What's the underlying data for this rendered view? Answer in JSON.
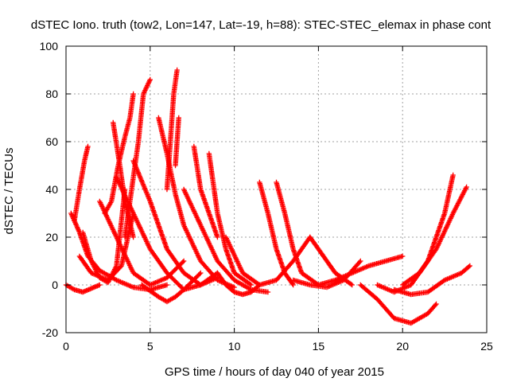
{
  "chart_data": {
    "type": "scatter",
    "title": "dSTEC Iono. truth (tow2, Lon=147, Lat=-19, h=88): STEC-STEC_elemax in phase cont",
    "xlabel": "GPS time / hours of day 040 of year 2015",
    "ylabel": "dSTEC  / TECUs",
    "xlim": [
      0,
      25
    ],
    "ylim": [
      -20,
      100
    ],
    "x_ticks": [
      "0",
      "5",
      "10",
      "15",
      "20",
      "25"
    ],
    "y_ticks": [
      "-20",
      "0",
      "20",
      "40",
      "60",
      "80",
      "100"
    ],
    "grid": true,
    "legend": "none",
    "marker": "+",
    "series_color": "#ff0000",
    "series": [
      {
        "x": [
          0.0,
          0.5,
          1.0,
          1.5,
          2.0
        ],
        "y": [
          0.0,
          -2.0,
          -3.0,
          -1.5,
          0.0
        ]
      },
      {
        "x": [
          0.3,
          0.8,
          1.3,
          2.0,
          3.0,
          4.0,
          5.0,
          6.0
        ],
        "y": [
          30,
          22,
          12,
          6,
          2,
          -1,
          -2,
          0
        ]
      },
      {
        "x": [
          0.5,
          0.8,
          1.1,
          1.3
        ],
        "y": [
          27,
          40,
          52,
          58
        ]
      },
      {
        "x": [
          0.8,
          1.5,
          2.5,
          3.3,
          4.0
        ],
        "y": [
          12,
          5,
          2,
          8,
          30
        ]
      },
      {
        "x": [
          1.0,
          1.5,
          2.0,
          2.5,
          3.0,
          3.5
        ],
        "y": [
          22,
          10,
          3,
          1,
          8,
          40
        ]
      },
      {
        "x": [
          2.0,
          3.0,
          4.0,
          5.0,
          6.0,
          7.0
        ],
        "y": [
          35,
          20,
          5,
          0,
          3,
          10
        ]
      },
      {
        "x": [
          2.3,
          2.7,
          3.1,
          3.5,
          3.8,
          4.0
        ],
        "y": [
          30,
          35,
          50,
          62,
          70,
          80
        ]
      },
      {
        "x": [
          2.8,
          3.2,
          3.5,
          4.0
        ],
        "y": [
          68,
          50,
          35,
          20
        ]
      },
      {
        "x": [
          3.0,
          4.0,
          5.0,
          6.0,
          7.0,
          8.0,
          9.0
        ],
        "y": [
          45,
          30,
          15,
          5,
          -2,
          0,
          5
        ]
      },
      {
        "x": [
          3.5,
          4.3,
          4.6,
          5.0
        ],
        "y": [
          20,
          60,
          80,
          86
        ]
      },
      {
        "x": [
          4.0,
          5.0,
          6.0,
          7.0,
          8.0,
          9.0
        ],
        "y": [
          52,
          35,
          15,
          5,
          0,
          3
        ]
      },
      {
        "x": [
          4.5,
          5.5,
          6.0,
          6.5,
          7.0,
          8.0
        ],
        "y": [
          0,
          -5,
          -7,
          -5,
          -2,
          5
        ]
      },
      {
        "x": [
          5.5,
          6.0,
          6.5,
          7.0,
          8.0,
          9.0,
          10.0
        ],
        "y": [
          70,
          55,
          38,
          25,
          10,
          2,
          -1
        ]
      },
      {
        "x": [
          6.0,
          6.2,
          6.4,
          6.6
        ],
        "y": [
          40,
          60,
          80,
          90
        ]
      },
      {
        "x": [
          6.5,
          6.7
        ],
        "y": [
          50,
          70
        ]
      },
      {
        "x": [
          7.0,
          8.0,
          9.0,
          10.0,
          11.0,
          12.0
        ],
        "y": [
          40,
          25,
          10,
          2,
          -2,
          -3
        ]
      },
      {
        "x": [
          7.6,
          8.0,
          8.5,
          9.0
        ],
        "y": [
          58,
          40,
          30,
          20
        ]
      },
      {
        "x": [
          8.5,
          9.0,
          9.5,
          10.0,
          11.0
        ],
        "y": [
          55,
          30,
          15,
          5,
          0
        ]
      },
      {
        "x": [
          9.0,
          9.5,
          10.0,
          10.5,
          11.0,
          11.5
        ],
        "y": [
          5,
          0,
          -3,
          -4,
          -3,
          0
        ]
      },
      {
        "x": [
          9.5,
          10.5,
          11.5,
          12.5,
          13.5,
          14.5
        ],
        "y": [
          20,
          5,
          0,
          2,
          10,
          20
        ]
      },
      {
        "x": [
          11.5,
          12.0,
          12.5,
          13.0,
          13.5
        ],
        "y": [
          43,
          30,
          15,
          5,
          0
        ]
      },
      {
        "x": [
          12.5,
          13.0,
          13.5,
          14.0,
          15.0
        ],
        "y": [
          43,
          30,
          15,
          5,
          0
        ]
      },
      {
        "x": [
          13.5,
          14.5,
          15.5,
          16.5,
          17.5
        ],
        "y": [
          2,
          0,
          -1,
          2,
          10
        ]
      },
      {
        "x": [
          14.5,
          15.0,
          15.5,
          16.0,
          17.0
        ],
        "y": [
          20,
          15,
          10,
          5,
          0
        ]
      },
      {
        "x": [
          15.0,
          16.0,
          17.0,
          18.0,
          19.0,
          20.0
        ],
        "y": [
          0,
          2,
          5,
          8,
          10,
          12
        ]
      },
      {
        "x": [
          17.5,
          18.5,
          19.5,
          20.5,
          21.5,
          22.0
        ],
        "y": [
          0,
          -6,
          -14,
          -16,
          -12,
          -8
        ]
      },
      {
        "x": [
          18.5,
          19.5,
          20.5,
          21.5,
          22.5,
          23.0
        ],
        "y": [
          0,
          -3,
          0,
          10,
          30,
          46
        ]
      },
      {
        "x": [
          19.5,
          20.5,
          21.5,
          22.5,
          23.5,
          24.0
        ],
        "y": [
          -2,
          -4,
          -3,
          2,
          5,
          8
        ]
      },
      {
        "x": [
          20.0,
          21.0,
          22.0,
          23.0,
          23.8
        ],
        "y": [
          0,
          5,
          15,
          30,
          41
        ]
      }
    ]
  }
}
